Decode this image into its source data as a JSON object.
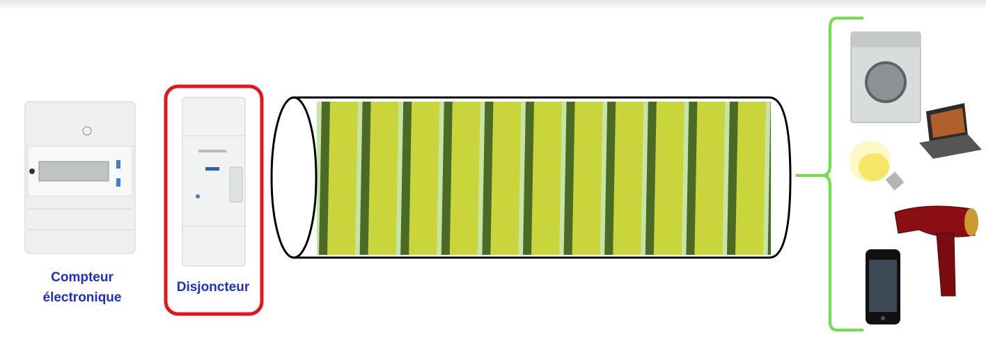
{
  "labels": {
    "meter": [
      "Compteur",
      "électronique"
    ],
    "breaker": "Disjoncteur"
  }
}
